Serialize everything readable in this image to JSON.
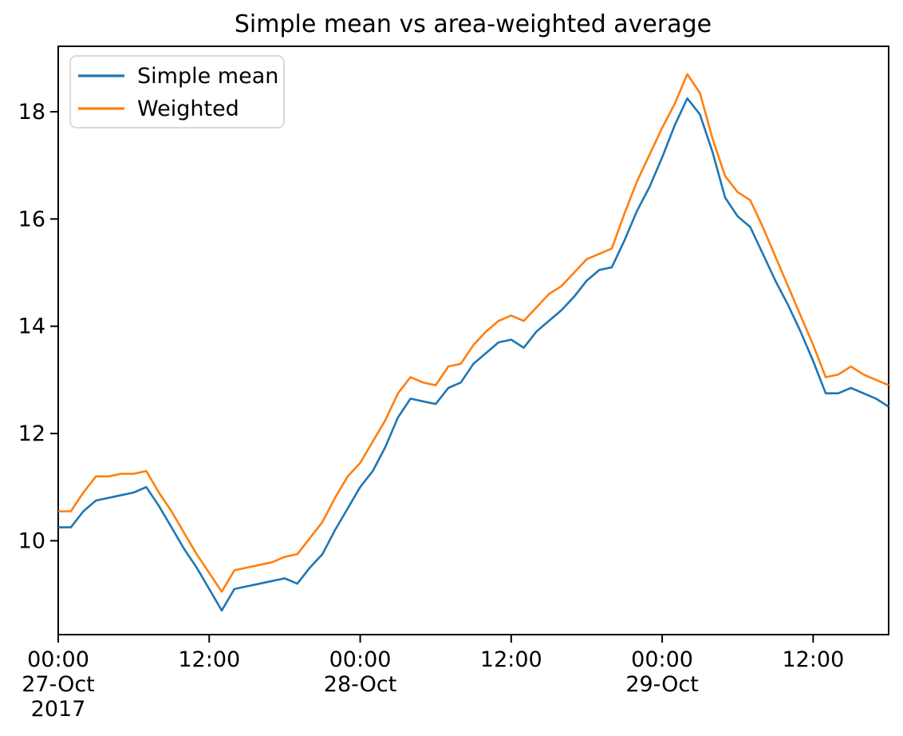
{
  "figure": {
    "background": "#ffffff",
    "spine_color": "#000000"
  },
  "chart_data": {
    "type": "line",
    "title": "Simple mean vs area-weighted average",
    "grid": false,
    "legend_position": "upper left",
    "xlim": [
      0,
      66
    ],
    "ylim": [
      8.25,
      19.22
    ],
    "y_ticks": [
      10,
      12,
      14,
      16,
      18
    ],
    "x_ticks": [
      {
        "pos": 0,
        "lines": [
          "00:00",
          "27-Oct",
          "2017"
        ]
      },
      {
        "pos": 12,
        "lines": [
          "12:00"
        ]
      },
      {
        "pos": 24,
        "lines": [
          "00:00",
          "28-Oct"
        ]
      },
      {
        "pos": 36,
        "lines": [
          "12:00"
        ]
      },
      {
        "pos": 48,
        "lines": [
          "00:00",
          "29-Oct"
        ]
      },
      {
        "pos": 60,
        "lines": [
          "12:00"
        ]
      }
    ],
    "x": [
      0,
      1,
      2,
      3,
      4,
      5,
      6,
      7,
      8,
      9,
      10,
      11,
      12,
      13,
      14,
      15,
      16,
      17,
      18,
      19,
      20,
      21,
      22,
      23,
      24,
      25,
      26,
      27,
      28,
      29,
      30,
      31,
      32,
      33,
      34,
      35,
      36,
      37,
      38,
      39,
      40,
      41,
      42,
      43,
      44,
      45,
      46,
      47,
      48,
      49,
      50,
      51,
      52,
      53,
      54,
      55,
      56,
      57,
      58,
      59,
      60,
      61,
      62,
      63,
      64,
      65,
      66
    ],
    "series": [
      {
        "name": "Simple mean",
        "color": "#1f77b4",
        "values": [
          10.25,
          10.25,
          10.55,
          10.75,
          10.8,
          10.85,
          10.9,
          11.0,
          10.65,
          10.25,
          9.85,
          9.5,
          9.1,
          8.7,
          9.1,
          9.15,
          9.2,
          9.25,
          9.3,
          9.2,
          9.5,
          9.75,
          10.2,
          10.6,
          11.0,
          11.3,
          11.75,
          12.3,
          12.65,
          12.6,
          12.55,
          12.85,
          12.95,
          13.3,
          13.5,
          13.7,
          13.75,
          13.6,
          13.9,
          14.1,
          14.3,
          14.55,
          14.85,
          15.05,
          15.1,
          15.6,
          16.15,
          16.6,
          17.15,
          17.75,
          18.25,
          17.95,
          17.25,
          16.4,
          16.05,
          15.85,
          15.35,
          14.85,
          14.4,
          13.9,
          13.35,
          12.75,
          12.75,
          12.85,
          12.75,
          12.65,
          12.5
        ]
      },
      {
        "name": "Weighted",
        "color": "#ff7f0e",
        "values": [
          10.55,
          10.55,
          10.9,
          11.2,
          11.2,
          11.25,
          11.25,
          11.3,
          10.9,
          10.55,
          10.15,
          9.75,
          9.4,
          9.05,
          9.45,
          9.5,
          9.55,
          9.6,
          9.7,
          9.75,
          10.05,
          10.35,
          10.8,
          11.2,
          11.45,
          11.85,
          12.25,
          12.75,
          13.05,
          12.95,
          12.9,
          13.25,
          13.3,
          13.65,
          13.9,
          14.1,
          14.2,
          14.1,
          14.35,
          14.6,
          14.75,
          15.0,
          15.25,
          15.35,
          15.45,
          16.1,
          16.7,
          17.2,
          17.7,
          18.15,
          18.7,
          18.35,
          17.5,
          16.8,
          16.5,
          16.35,
          15.85,
          15.3,
          14.75,
          14.2,
          13.65,
          13.05,
          13.1,
          13.25,
          13.1,
          13.0,
          12.9
        ]
      }
    ]
  }
}
